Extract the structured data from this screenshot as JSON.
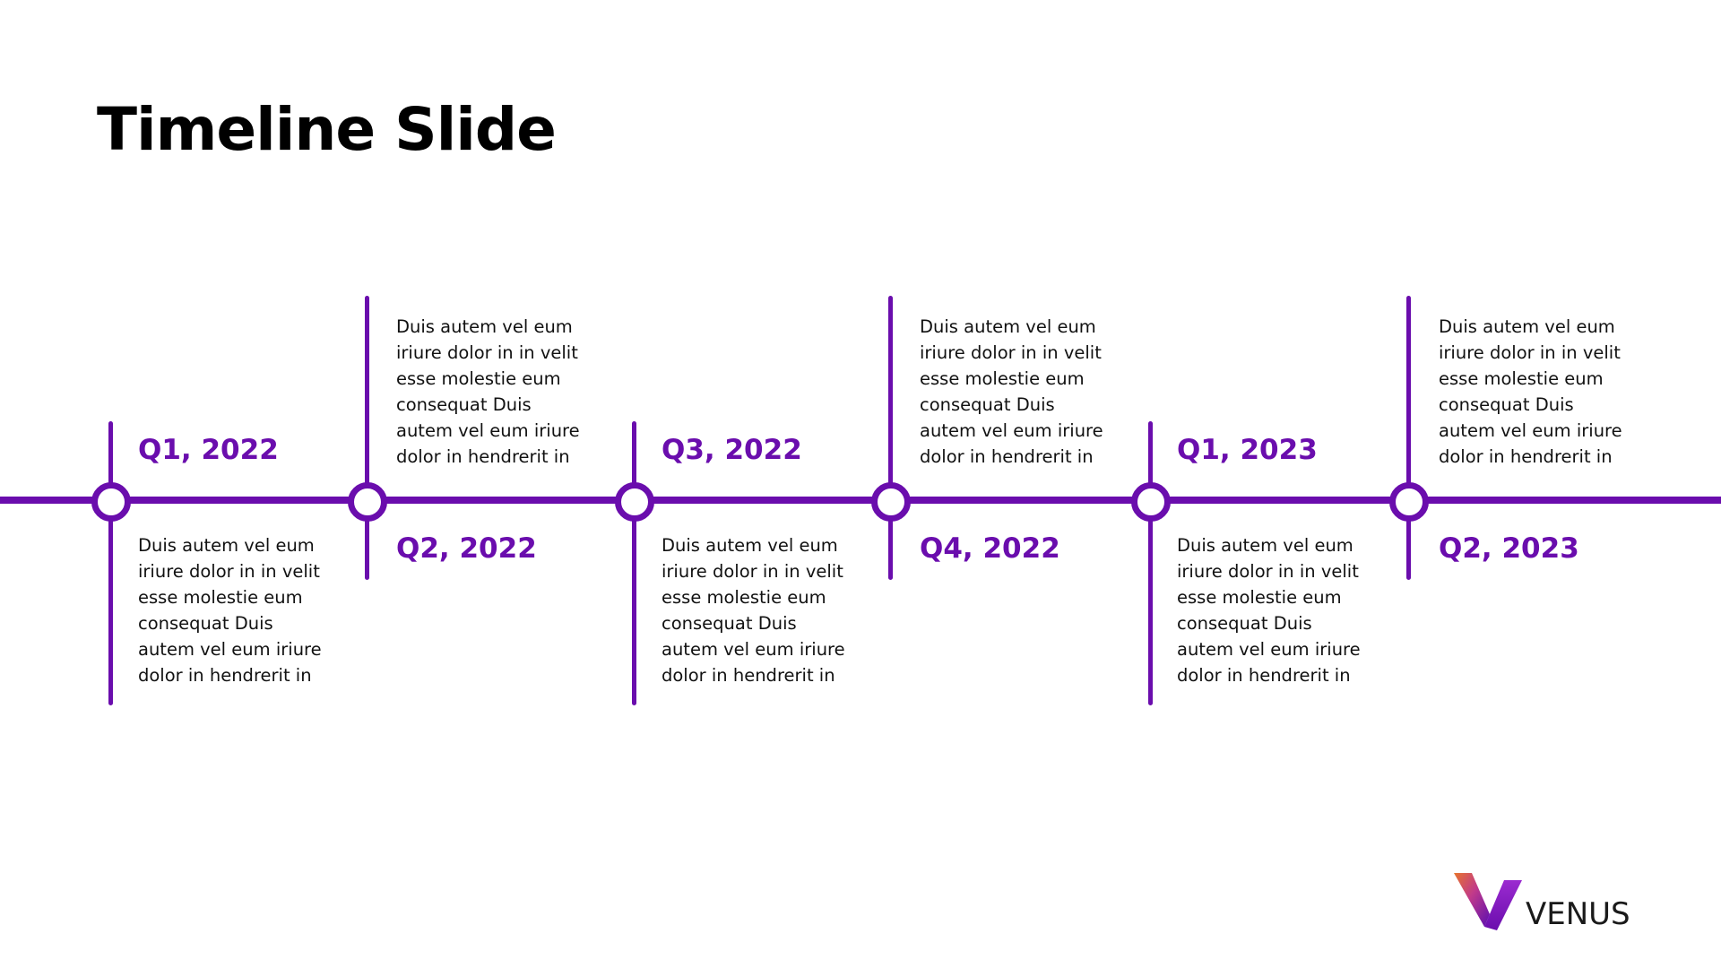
{
  "slide": {
    "title": "Timeline Slide"
  },
  "timeline": {
    "accent_color": "#6a0dad",
    "milestones": [
      {
        "label": "Q1, 2022",
        "position": "below",
        "description": [
          "Duis autem vel eum",
          "iriure dolor in in velit",
          "esse molestie eum",
          "consequat Duis",
          "autem vel eum iriure",
          "dolor in hendrerit in"
        ]
      },
      {
        "label": "Q2, 2022",
        "position": "above",
        "description": [
          "Duis autem vel eum",
          "iriure dolor in in velit",
          "esse molestie eum",
          "consequat Duis",
          "autem vel eum iriure",
          "dolor in hendrerit in"
        ]
      },
      {
        "label": "Q3, 2022",
        "position": "below",
        "description": [
          "Duis autem vel eum",
          "iriure dolor in in velit",
          "esse molestie eum",
          "consequat Duis",
          "autem vel eum iriure",
          "dolor in hendrerit in"
        ]
      },
      {
        "label": "Q4, 2022",
        "position": "above",
        "description": [
          "Duis autem vel eum",
          "iriure dolor in in velit",
          "esse molestie eum",
          "consequat Duis",
          "autem vel eum iriure",
          "dolor in hendrerit in"
        ]
      },
      {
        "label": "Q1, 2023",
        "position": "below",
        "description": [
          "Duis autem vel eum",
          "iriure dolor in in velit",
          "esse molestie eum",
          "consequat Duis",
          "autem vel eum iriure",
          "dolor in hendrerit in"
        ]
      },
      {
        "label": "Q2, 2023",
        "position": "above",
        "description": [
          "Duis autem vel eum",
          "iriure dolor in in velit",
          "esse molestie eum",
          "consequat Duis",
          "autem vel eum iriure",
          "dolor in hendrerit in"
        ]
      }
    ]
  },
  "brand": {
    "name": "VENUS",
    "logo_icon": "venus-v-icon"
  }
}
